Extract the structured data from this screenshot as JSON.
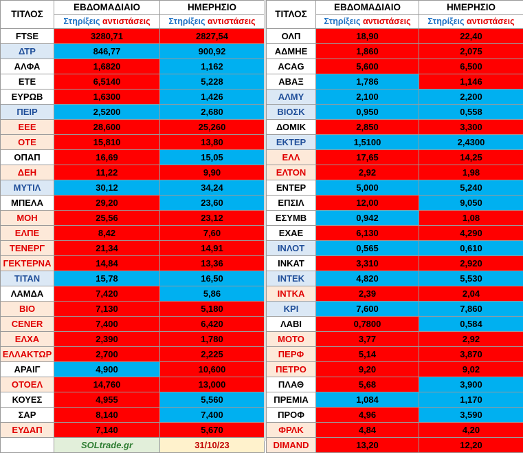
{
  "headers": {
    "ticker": "ΤΙΤΛΟΣ",
    "weekly": "ΕΒΔΟΜΑΔΙΑΙΟ",
    "daily": "ΗΜΕΡΗΣΙΟ",
    "supports": "Στηρίξεις",
    "resistances": "αντιστάσεις"
  },
  "colors": {
    "red": "#ff0000",
    "blue": "#00b0f0",
    "tick_red": "#e00000",
    "header_blue": "#1f72c4"
  },
  "left": [
    {
      "t": "FTSE",
      "w": "3280,71",
      "wc": "r",
      "d": "2827,54",
      "dc": "r",
      "tc": "black"
    },
    {
      "t": "ΔΤΡ",
      "w": "846,77",
      "wc": "b",
      "d": "900,92",
      "dc": "b",
      "tc": "blue"
    },
    {
      "t": "ΑΛΦΑ",
      "w": "1,6820",
      "wc": "r",
      "d": "1,162",
      "dc": "b",
      "tc": "black"
    },
    {
      "t": "ΕΤΕ",
      "w": "6,5140",
      "wc": "r",
      "d": "5,228",
      "dc": "b",
      "tc": "black"
    },
    {
      "t": "ΕΥΡΩΒ",
      "w": "1,6300",
      "wc": "r",
      "d": "1,426",
      "dc": "b",
      "tc": "black"
    },
    {
      "t": "ΠΕΙΡ",
      "w": "2,5200",
      "wc": "b",
      "d": "2,680",
      "dc": "b",
      "tc": "blue"
    },
    {
      "t": "ΕΕΕ",
      "w": "28,600",
      "wc": "r",
      "d": "25,260",
      "dc": "r",
      "tc": "red"
    },
    {
      "t": "ΟΤΕ",
      "w": "15,810",
      "wc": "r",
      "d": "13,80",
      "dc": "r",
      "tc": "red"
    },
    {
      "t": "ΟΠΑΠ",
      "w": "16,69",
      "wc": "r",
      "d": "15,05",
      "dc": "b",
      "tc": "black"
    },
    {
      "t": "ΔΕΗ",
      "w": "11,22",
      "wc": "r",
      "d": "9,90",
      "dc": "r",
      "tc": "red"
    },
    {
      "t": "ΜΥΤΙΛ",
      "w": "30,12",
      "wc": "b",
      "d": "34,24",
      "dc": "b",
      "tc": "blue"
    },
    {
      "t": "ΜΠΕΛΑ",
      "w": "29,20",
      "wc": "r",
      "d": "23,60",
      "dc": "b",
      "tc": "black"
    },
    {
      "t": "ΜΟΗ",
      "w": "25,56",
      "wc": "r",
      "d": "23,12",
      "dc": "r",
      "tc": "red"
    },
    {
      "t": "ΕΛΠΕ",
      "w": "8,42",
      "wc": "r",
      "d": "7,60",
      "dc": "r",
      "tc": "red"
    },
    {
      "t": "ΤΕΝΕΡΓ",
      "w": "21,34",
      "wc": "r",
      "d": "14,91",
      "dc": "r",
      "tc": "red"
    },
    {
      "t": "ΓΕΚΤΕΡΝΑ",
      "w": "14,84",
      "wc": "r",
      "d": "13,36",
      "dc": "r",
      "tc": "red"
    },
    {
      "t": "ΤΙΤΑΝ",
      "w": "15,78",
      "wc": "b",
      "d": "16,50",
      "dc": "b",
      "tc": "blue"
    },
    {
      "t": "ΛΑΜΔΑ",
      "w": "7,420",
      "wc": "r",
      "d": "5,86",
      "dc": "b",
      "tc": "black"
    },
    {
      "t": "ΒΙΟ",
      "w": "7,130",
      "wc": "r",
      "d": "5,180",
      "dc": "r",
      "tc": "red"
    },
    {
      "t": "CENER",
      "w": "7,400",
      "wc": "r",
      "d": "6,420",
      "dc": "r",
      "tc": "red"
    },
    {
      "t": "ΕΛΧΑ",
      "w": "2,390",
      "wc": "r",
      "d": "1,780",
      "dc": "r",
      "tc": "red"
    },
    {
      "t": "ΕΛΛΑΚΤΩΡ",
      "w": "2,700",
      "wc": "r",
      "d": "2,225",
      "dc": "r",
      "tc": "red"
    },
    {
      "t": "ΑΡΑΙΓ",
      "w": "4,900",
      "wc": "b",
      "d": "10,600",
      "dc": "r",
      "tc": "black"
    },
    {
      "t": "ΟΤΟΕΛ",
      "w": "14,760",
      "wc": "r",
      "d": "13,000",
      "dc": "r",
      "tc": "red"
    },
    {
      "t": "ΚΟΥΕΣ",
      "w": "4,955",
      "wc": "r",
      "d": "5,560",
      "dc": "b",
      "tc": "black"
    },
    {
      "t": "ΣΑΡ",
      "w": "8,140",
      "wc": "r",
      "d": "7,400",
      "dc": "b",
      "tc": "black"
    },
    {
      "t": "ΕΥΔΑΠ",
      "w": "7,140",
      "wc": "r",
      "d": "5,670",
      "dc": "r",
      "tc": "red"
    }
  ],
  "footer": {
    "brand": "SOLtrade.gr",
    "date": "31/10/23"
  },
  "right": [
    {
      "t": "ΟΛΠ",
      "w": "18,90",
      "wc": "r",
      "d": "22,40",
      "dc": "r",
      "tc": "black"
    },
    {
      "t": "ΑΔΜΗΕ",
      "w": "1,860",
      "wc": "r",
      "d": "2,075",
      "dc": "r",
      "tc": "black"
    },
    {
      "t": "ACAG",
      "w": "5,600",
      "wc": "r",
      "d": "6,500",
      "dc": "r",
      "tc": "black"
    },
    {
      "t": "ΑΒΑΞ",
      "w": "1,786",
      "wc": "b",
      "d": "1,146",
      "dc": "r",
      "tc": "black"
    },
    {
      "t": "ΑΛΜΥ",
      "w": "2,100",
      "wc": "b",
      "d": "2,200",
      "dc": "b",
      "tc": "blue"
    },
    {
      "t": "ΒΙΟΣΚ",
      "w": "0,950",
      "wc": "b",
      "d": "0,558",
      "dc": "b",
      "tc": "blue"
    },
    {
      "t": "ΔΟΜΙΚ",
      "w": "2,850",
      "wc": "r",
      "d": "3,300",
      "dc": "r",
      "tc": "black"
    },
    {
      "t": "ΕΚΤΕΡ",
      "w": "1,5100",
      "wc": "b",
      "d": "2,4300",
      "dc": "b",
      "tc": "blue"
    },
    {
      "t": "ΕΛΛ",
      "w": "17,65",
      "wc": "r",
      "d": "14,25",
      "dc": "r",
      "tc": "red"
    },
    {
      "t": "ΕΛΤΟΝ",
      "w": "2,92",
      "wc": "r",
      "d": "1,98",
      "dc": "r",
      "tc": "red"
    },
    {
      "t": "ΕΝΤΕΡ",
      "w": "5,000",
      "wc": "b",
      "d": "5,240",
      "dc": "b",
      "tc": "black"
    },
    {
      "t": "ΕΠΣΙΛ",
      "w": "12,00",
      "wc": "r",
      "d": "9,050",
      "dc": "b",
      "tc": "black"
    },
    {
      "t": "ΕΣΥΜΒ",
      "w": "0,942",
      "wc": "b",
      "d": "1,08",
      "dc": "r",
      "tc": "black"
    },
    {
      "t": "ΕΧΑΕ",
      "w": "6,130",
      "wc": "r",
      "d": "4,290",
      "dc": "r",
      "tc": "black"
    },
    {
      "t": "ΙΝΛΟΤ",
      "w": "0,565",
      "wc": "b",
      "d": "0,610",
      "dc": "b",
      "tc": "blue"
    },
    {
      "t": "ΙΝΚΑΤ",
      "w": "3,310",
      "wc": "r",
      "d": "2,920",
      "dc": "r",
      "tc": "black"
    },
    {
      "t": "ΙΝΤΕΚ",
      "w": "4,820",
      "wc": "b",
      "d": "5,530",
      "dc": "b",
      "tc": "blue"
    },
    {
      "t": "ΙΝΤΚΑ",
      "w": "2,39",
      "wc": "r",
      "d": "2,04",
      "dc": "r",
      "tc": "red"
    },
    {
      "t": "ΚΡΙ",
      "w": "7,600",
      "wc": "b",
      "d": "7,860",
      "dc": "b",
      "tc": "blue"
    },
    {
      "t": "ΛΑΒΙ",
      "w": "0,7800",
      "wc": "r",
      "d": "0,584",
      "dc": "b",
      "tc": "black"
    },
    {
      "t": "ΜΟΤΟ",
      "w": "3,77",
      "wc": "r",
      "d": "2,92",
      "dc": "r",
      "tc": "red"
    },
    {
      "t": "ΠΕΡΦ",
      "w": "5,14",
      "wc": "r",
      "d": "3,870",
      "dc": "r",
      "tc": "red"
    },
    {
      "t": "ΠΕΤΡΟ",
      "w": "9,20",
      "wc": "r",
      "d": "9,02",
      "dc": "r",
      "tc": "red"
    },
    {
      "t": "ΠΛΑΘ",
      "w": "5,68",
      "wc": "r",
      "d": "3,900",
      "dc": "b",
      "tc": "black"
    },
    {
      "t": "ΠΡΕΜΙΑ",
      "w": "1,084",
      "wc": "b",
      "d": "1,170",
      "dc": "b",
      "tc": "black"
    },
    {
      "t": "ΠΡΟΦ",
      "w": "4,96",
      "wc": "r",
      "d": "3,590",
      "dc": "b",
      "tc": "black"
    },
    {
      "t": "ΦΡΛΚ",
      "w": "4,84",
      "wc": "r",
      "d": "4,20",
      "dc": "r",
      "tc": "red"
    },
    {
      "t": "DIMAND",
      "w": "13,20",
      "wc": "r",
      "d": "12,20",
      "dc": "r",
      "tc": "red"
    }
  ]
}
